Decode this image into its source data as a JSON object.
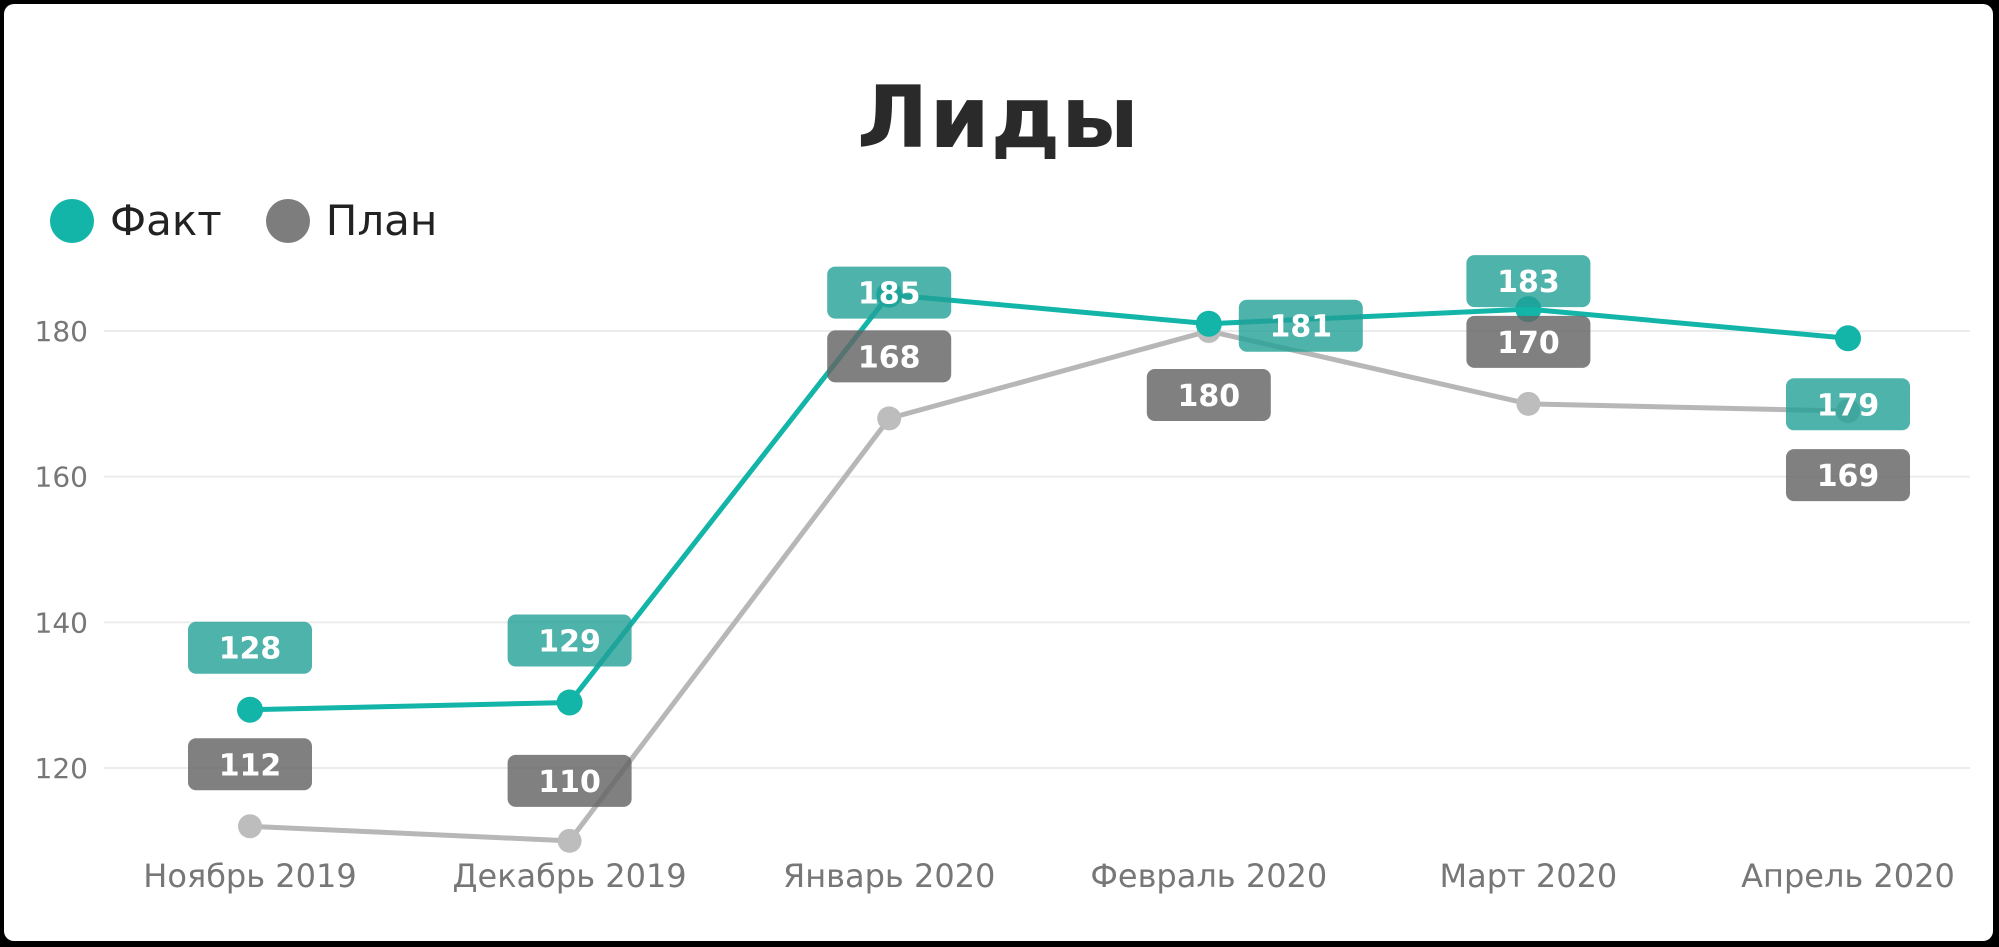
{
  "chart_data": {
    "type": "line",
    "title": "Лиды",
    "categories": [
      "Ноябрь 2019",
      "Декабрь 2019",
      "Январь 2020",
      "Февраль 2020",
      "Март 2020",
      "Апрель 2020"
    ],
    "series": [
      {
        "name": "Факт",
        "color": "#12b5a8",
        "values": [
          128,
          129,
          185,
          181,
          183,
          179
        ]
      },
      {
        "name": "План",
        "color": "#8a8a8a",
        "values": [
          112,
          110,
          168,
          180,
          170,
          169
        ]
      }
    ],
    "yticks": [
      "120",
      "140",
      "160",
      "180"
    ],
    "ylim": [
      110,
      188
    ],
    "grid": true,
    "legend_position": "top-left"
  }
}
